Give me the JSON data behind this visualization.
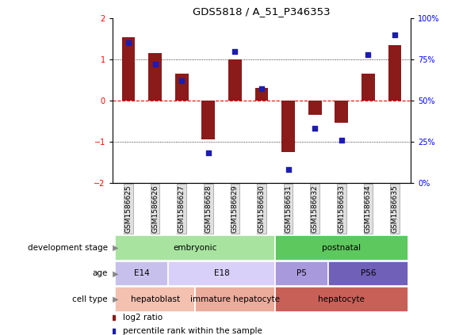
{
  "title": "GDS5818 / A_51_P346353",
  "samples": [
    "GSM1586625",
    "GSM1586626",
    "GSM1586627",
    "GSM1586628",
    "GSM1586629",
    "GSM1586630",
    "GSM1586631",
    "GSM1586632",
    "GSM1586633",
    "GSM1586634",
    "GSM1586635"
  ],
  "log2_ratio": [
    1.55,
    1.15,
    0.65,
    -0.95,
    1.0,
    0.3,
    -1.25,
    -0.35,
    -0.55,
    0.65,
    1.35
  ],
  "percentile": [
    85,
    72,
    62,
    18,
    80,
    57,
    8,
    33,
    26,
    78,
    90
  ],
  "ylim": [
    -2,
    2
  ],
  "right_ylim": [
    0,
    100
  ],
  "bar_color": "#8B1A1A",
  "dot_color": "#1C1CB0",
  "annotation_rows": [
    {
      "label": "development stage",
      "segments": [
        {
          "text": "embryonic",
          "start": 0,
          "end": 6,
          "color": "#A8E4A0"
        },
        {
          "text": "postnatal",
          "start": 6,
          "end": 11,
          "color": "#5DC85D"
        }
      ]
    },
    {
      "label": "age",
      "segments": [
        {
          "text": "E14",
          "start": 0,
          "end": 2,
          "color": "#C8C0EC"
        },
        {
          "text": "E18",
          "start": 2,
          "end": 6,
          "color": "#D8D0F8"
        },
        {
          "text": "P5",
          "start": 6,
          "end": 8,
          "color": "#A898DC"
        },
        {
          "text": "P56",
          "start": 8,
          "end": 11,
          "color": "#7060B8"
        }
      ]
    },
    {
      "label": "cell type",
      "segments": [
        {
          "text": "hepatoblast",
          "start": 0,
          "end": 3,
          "color": "#F4C0B0"
        },
        {
          "text": "immature hepatocyte",
          "start": 3,
          "end": 6,
          "color": "#ECAC9C"
        },
        {
          "text": "hepatocyte",
          "start": 6,
          "end": 11,
          "color": "#C86058"
        }
      ]
    }
  ],
  "legend_items": [
    {
      "label": "log2 ratio",
      "color": "#8B1A1A"
    },
    {
      "label": "percentile rank within the sample",
      "color": "#1C1CB0"
    }
  ]
}
